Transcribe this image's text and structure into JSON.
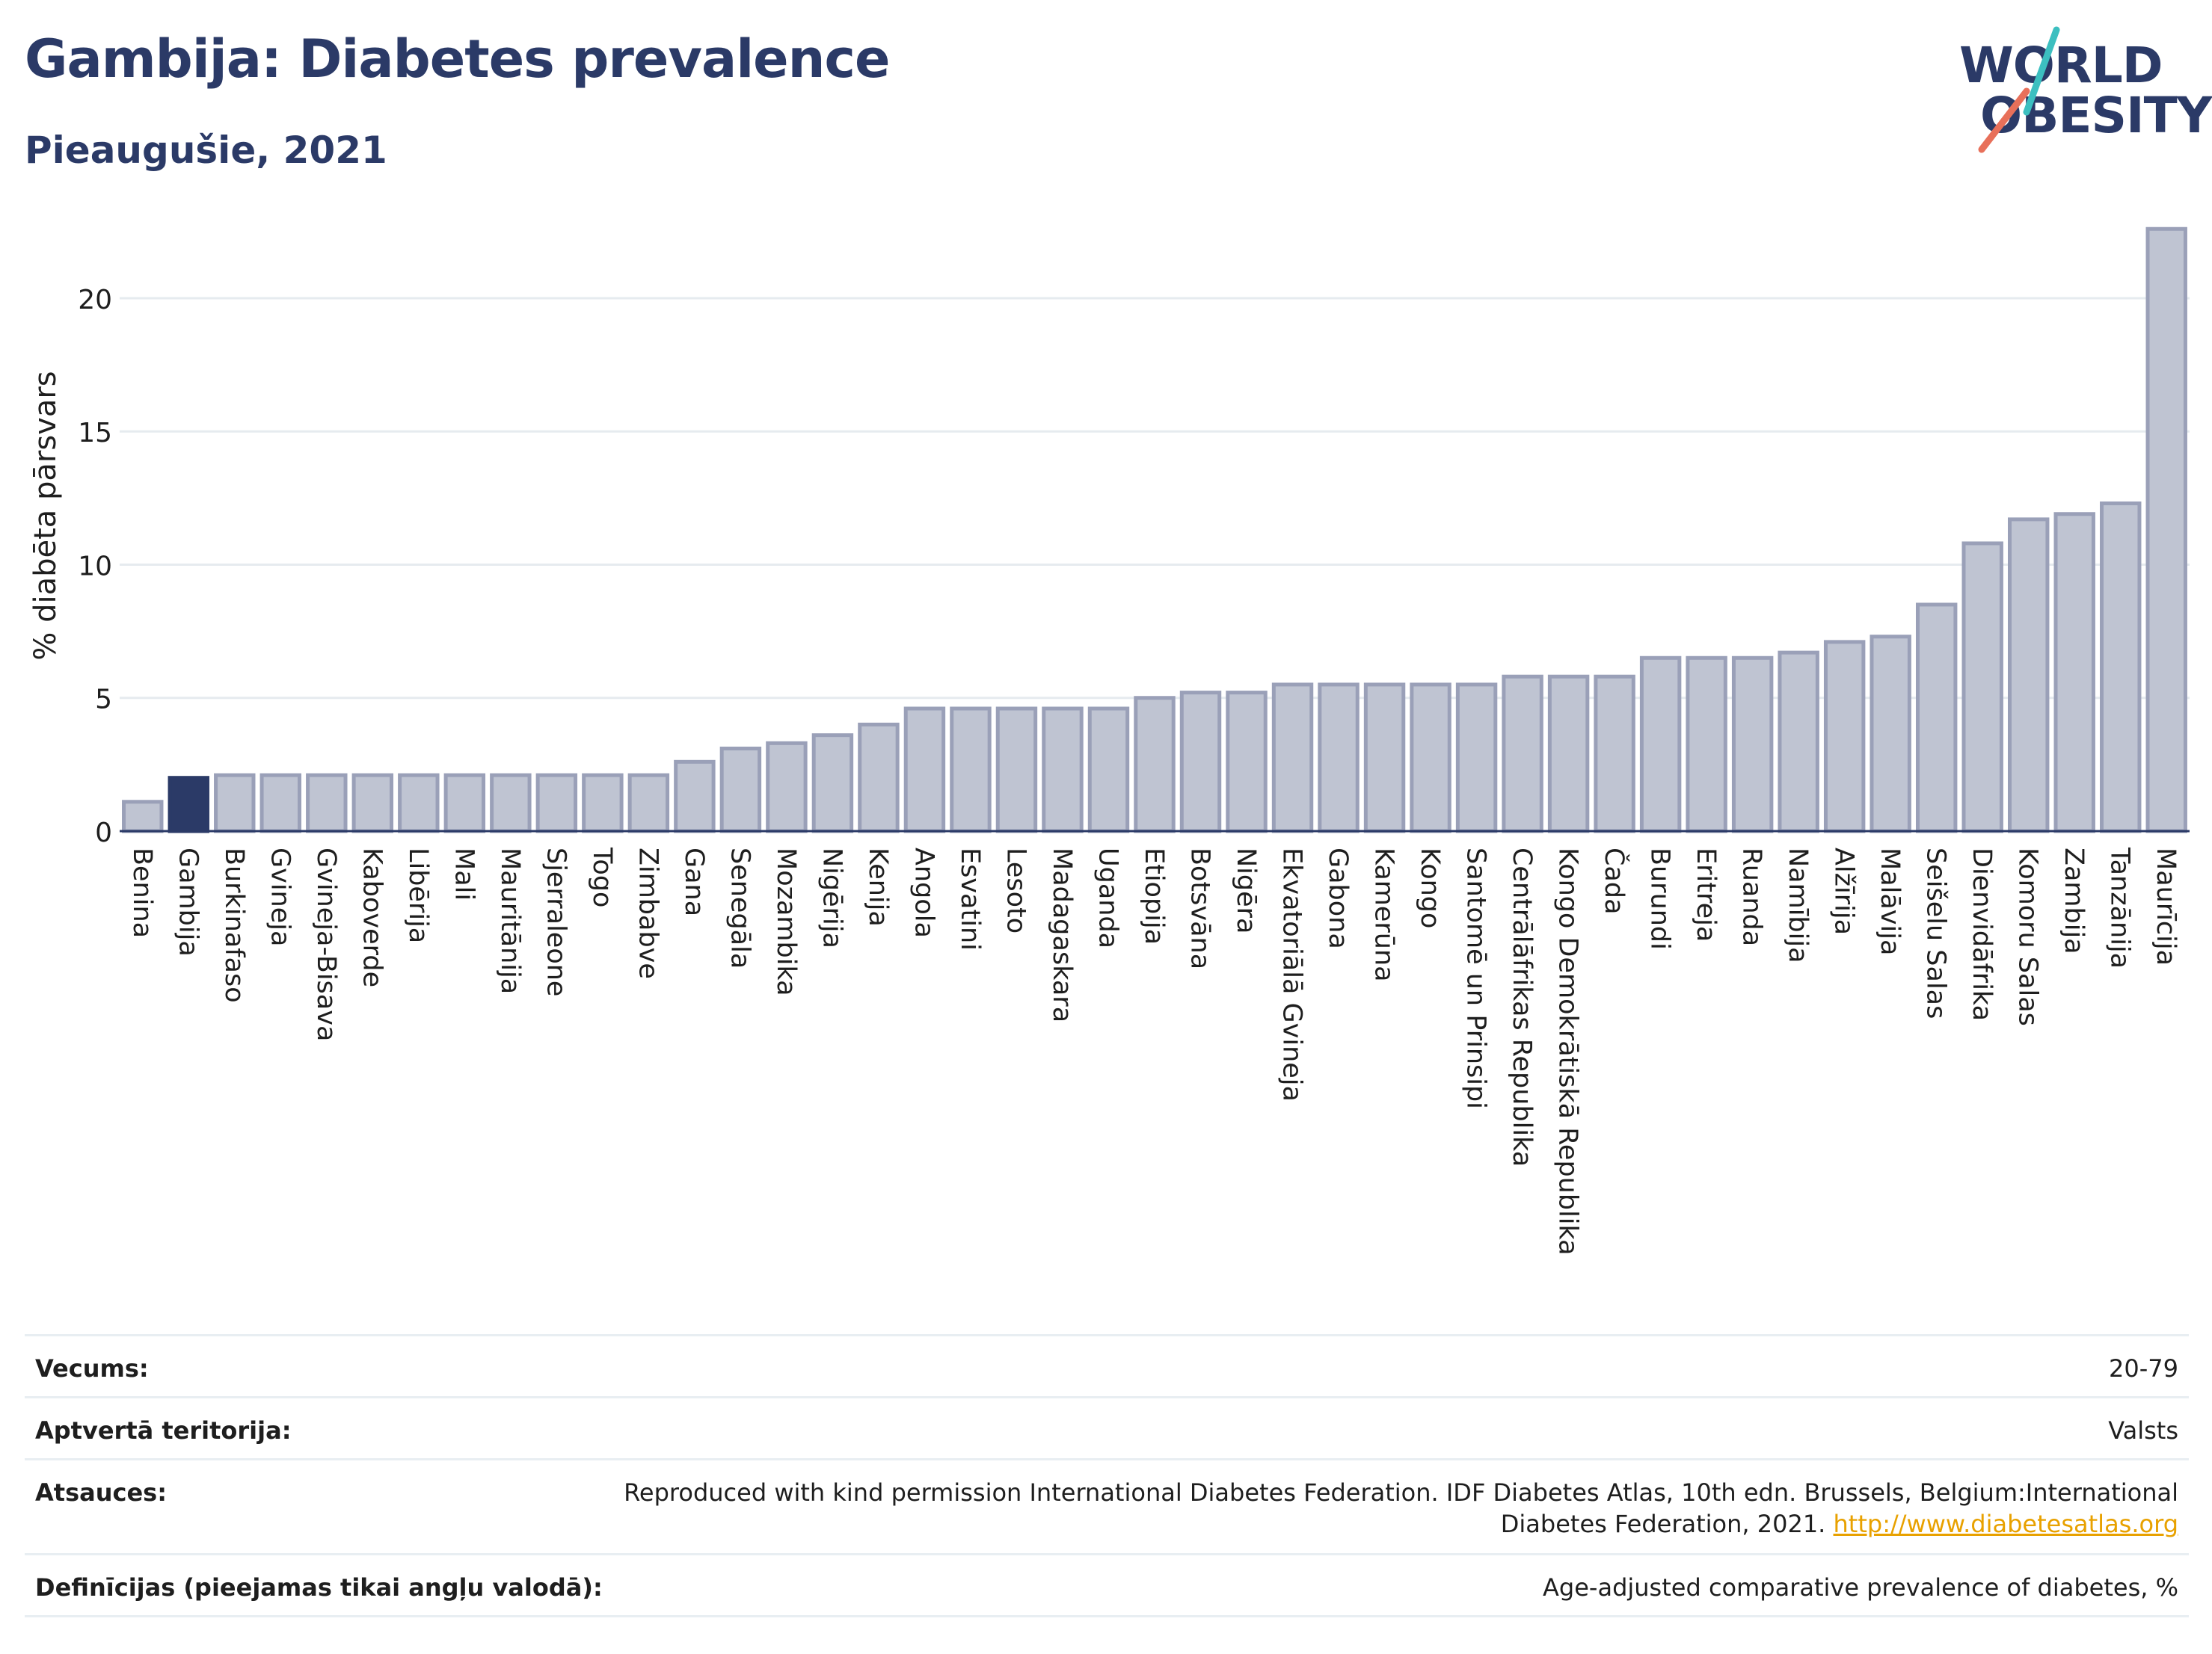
{
  "header": {
    "title": "Gambija: Diabetes prevalence",
    "subtitle": "Pieaugušie, 2021"
  },
  "logo": {
    "line1": "WORLD",
    "line2": "OBESITY",
    "accent_colors": [
      "#3cbfc0",
      "#e8705a"
    ]
  },
  "colors": {
    "highlight_bar": "#2b3a67",
    "other_bar_fill": "#bfc4d2",
    "other_bar_stroke": "#9aa0b8",
    "grid": "#e6ebef",
    "axis_text": "#1e1e1e"
  },
  "chart_data": {
    "type": "bar",
    "ylabel": "% diabēta pārsvars",
    "ylim": [
      0,
      23
    ],
    "yticks": [
      0,
      5,
      10,
      15,
      20
    ],
    "grid": true,
    "highlight": "Gambija",
    "categories": [
      "Benina",
      "Gambija",
      "Burkinafaso",
      "Gvineja",
      "Gvineja-Bisava",
      "Kaboverde",
      "Libērija",
      "Mali",
      "Mauritānija",
      "Sjerraleone",
      "Togo",
      "Zimbabve",
      "Gana",
      "Senegāla",
      "Mozambika",
      "Nigērija",
      "Kenija",
      "Angola",
      "Esvatini",
      "Lesoto",
      "Madagaskara",
      "Uganda",
      "Etiopija",
      "Botsvāna",
      "Nigēra",
      "Ekvatoriālā Gvineja",
      "Gabona",
      "Kamerūna",
      "Kongo",
      "Santomē un Prinsipi",
      "Centrālāfrikas Republika",
      "Kongo Demokrātiskā Republika",
      "Čada",
      "Burundi",
      "Eritreja",
      "Ruanda",
      "Namībija",
      "Alžīrija",
      "Malāvija",
      "Seišelu Salas",
      "Dienvidāfrika",
      "Komoru Salas",
      "Zambija",
      "Tanzānija",
      "Maurīcija"
    ],
    "values": [
      1.1,
      2.0,
      2.1,
      2.1,
      2.1,
      2.1,
      2.1,
      2.1,
      2.1,
      2.1,
      2.1,
      2.1,
      2.6,
      3.1,
      3.3,
      3.6,
      4.0,
      4.6,
      4.6,
      4.6,
      4.6,
      4.6,
      5.0,
      5.2,
      5.2,
      5.5,
      5.5,
      5.5,
      5.5,
      5.5,
      5.8,
      5.8,
      5.8,
      6.5,
      6.5,
      6.5,
      6.7,
      7.1,
      7.3,
      8.5,
      10.8,
      11.7,
      11.9,
      12.3,
      22.6
    ]
  },
  "meta": [
    {
      "label": "Vecums:",
      "value": "20-79"
    },
    {
      "label": "Aptvertā teritorija:",
      "value": "Valsts"
    },
    {
      "label": "Atsauces:",
      "value_line1": "Reproduced with kind permission International Diabetes Federation.  IDF Diabetes Atlas, 10th edn. Brussels, Belgium:International",
      "value_line2": "Diabetes Federation, 2021.",
      "link": "http://www.diabetesatlas.org"
    },
    {
      "label": "Definīcijas (pieejamas tikai angļu valodā):",
      "value": "Age-adjusted comparative prevalence of diabetes, %"
    }
  ]
}
